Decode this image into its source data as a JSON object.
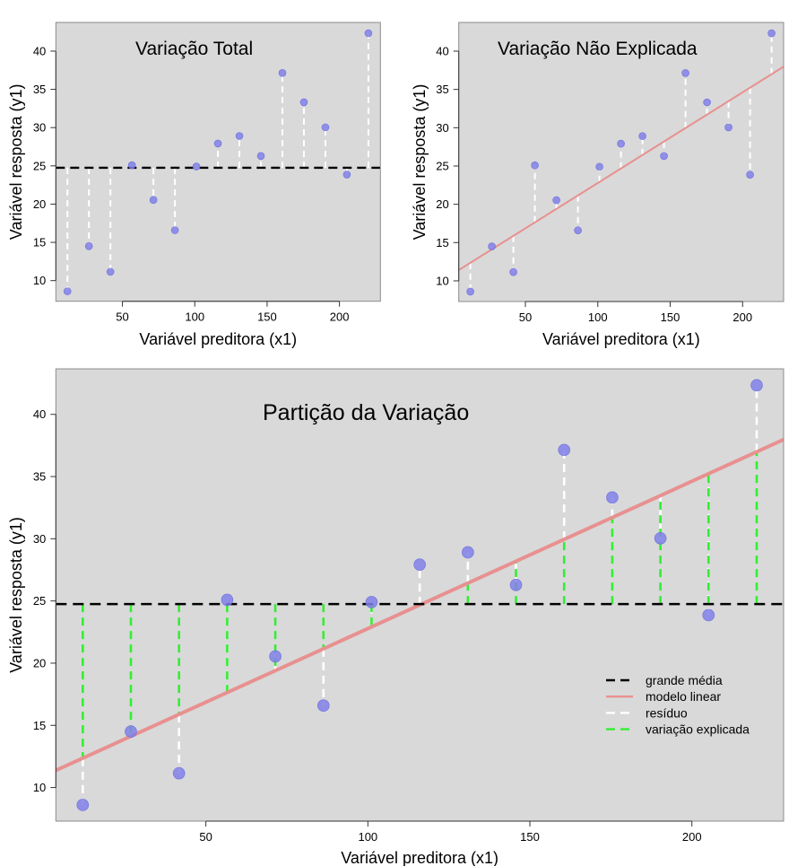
{
  "figure": {
    "colors": {
      "panel_background": "#d9d9d9",
      "frame": "#8c8c8c",
      "points": "#8080e8",
      "grand_mean": "#000000",
      "linear_model": "#e89090",
      "residual": "#ffffff",
      "explained": "#33ee33"
    }
  },
  "chart_data": [
    {
      "id": "variacao-total",
      "type": "scatter",
      "title": "Variação Total",
      "xlabel": "Variável preditora (x1)",
      "ylabel": "Variável resposta (y1)",
      "xlim": [
        4,
        228.3
      ],
      "ylim": [
        7.3,
        43.75
      ],
      "xticks": [
        50,
        100,
        150,
        200
      ],
      "yticks": [
        10,
        15,
        20,
        25,
        30,
        35,
        40
      ],
      "grid": false,
      "x": [
        12,
        26.86,
        41.71,
        56.57,
        71.43,
        86.29,
        101.14,
        116,
        130.86,
        145.71,
        160.57,
        175.43,
        190.29,
        205.14,
        220
      ],
      "y": [
        8.6,
        14.5,
        11.15,
        25.09,
        20.54,
        16.59,
        24.91,
        27.92,
        28.91,
        26.29,
        37.14,
        33.32,
        30.04,
        23.86,
        42.34
      ],
      "grand_mean": 24.75,
      "show_grand_mean": true,
      "show_model": false,
      "segments": "total"
    },
    {
      "id": "variacao-nao-explicada",
      "type": "scatter",
      "title": "Variação Não Explicada",
      "xlabel": "Variável preditora (x1)",
      "ylabel": "Variável resposta (y1)",
      "xlim": [
        4,
        228.3
      ],
      "ylim": [
        7.3,
        43.75
      ],
      "xticks": [
        50,
        100,
        150,
        200
      ],
      "yticks": [
        10,
        15,
        20,
        25,
        30,
        35,
        40
      ],
      "grid": false,
      "x": [
        12,
        26.86,
        41.71,
        56.57,
        71.43,
        86.29,
        101.14,
        116,
        130.86,
        145.71,
        160.57,
        175.43,
        190.29,
        205.14,
        220
      ],
      "y": [
        8.6,
        14.5,
        11.15,
        25.09,
        20.54,
        16.59,
        24.91,
        27.92,
        28.91,
        26.29,
        37.14,
        33.32,
        30.04,
        23.86,
        42.34
      ],
      "model": {
        "intercept": 10.94,
        "slope": 0.1184
      },
      "show_grand_mean": false,
      "show_model": true,
      "segments": "residual"
    },
    {
      "id": "particao-da-variacao",
      "type": "scatter",
      "title": "Partição da Variação",
      "xlabel": "Variável preditora (x1)",
      "ylabel": "Variável resposta (y1)",
      "xlim": [
        3.7,
        228.3
      ],
      "ylim": [
        7.3,
        43.66
      ],
      "xticks": [
        50,
        100,
        150,
        200
      ],
      "yticks": [
        10,
        15,
        20,
        25,
        30,
        35,
        40
      ],
      "grid": false,
      "x": [
        12,
        26.86,
        41.71,
        56.57,
        71.43,
        86.29,
        101.14,
        116,
        130.86,
        145.71,
        160.57,
        175.43,
        190.29,
        205.14,
        220
      ],
      "y": [
        8.6,
        14.5,
        11.15,
        25.09,
        20.54,
        16.59,
        24.91,
        27.92,
        28.91,
        26.29,
        37.14,
        33.32,
        30.04,
        23.86,
        42.34
      ],
      "grand_mean": 24.75,
      "model": {
        "intercept": 10.94,
        "slope": 0.1184
      },
      "show_grand_mean": true,
      "show_model": true,
      "segments": "partition",
      "legend": {
        "placement": "center-right",
        "entries": [
          {
            "label": "grande média",
            "style": "dashed",
            "color_key": "grand_mean"
          },
          {
            "label": "modelo linear",
            "style": "solid",
            "color_key": "linear_model"
          },
          {
            "label": "resíduo",
            "style": "dashed",
            "color_key": "residual"
          },
          {
            "label": "variação explicada",
            "style": "dashed",
            "color_key": "explained"
          }
        ]
      }
    }
  ]
}
